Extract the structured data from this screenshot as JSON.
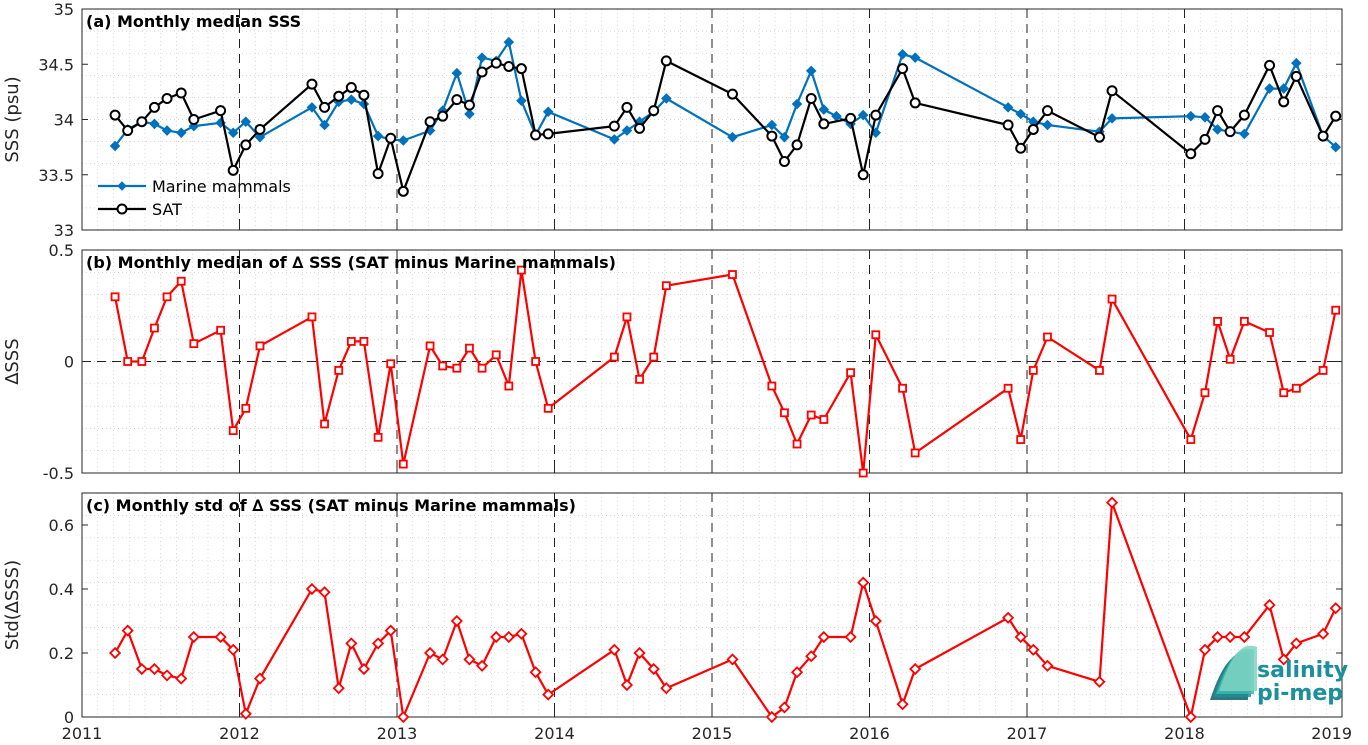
{
  "chart_data": [
    {
      "type": "line",
      "title": "(a) Monthly median SSS",
      "ylabel": "SSS (psu)",
      "xlim": [
        2011,
        2019
      ],
      "ylim": [
        33,
        35
      ],
      "yticks": [
        "33",
        "33.5",
        "34",
        "34.5",
        "35"
      ],
      "xticks": [
        "2011",
        "2012",
        "2013",
        "2014",
        "2015",
        "2016",
        "2017",
        "2018",
        "2019"
      ],
      "grid": true,
      "legend_position": "bottom-left",
      "series": [
        {
          "name": "Marine mammals",
          "color": "#0072bd",
          "marker": "diamond",
          "x": [
            2011.21,
            2011.29,
            2011.38,
            2011.46,
            2011.54,
            2011.63,
            2011.71,
            2011.88,
            2011.96,
            2012.04,
            2012.13,
            2012.46,
            2012.54,
            2012.63,
            2012.71,
            2012.79,
            2012.88,
            2012.96,
            2013.04,
            2013.21,
            2013.29,
            2013.38,
            2013.46,
            2013.54,
            2013.63,
            2013.71,
            2013.79,
            2013.88,
            2013.96,
            2014.38,
            2014.46,
            2014.54,
            2014.63,
            2014.71,
            2015.13,
            2015.38,
            2015.46,
            2015.54,
            2015.63,
            2015.71,
            2015.79,
            2015.88,
            2015.96,
            2016.04,
            2016.21,
            2016.29,
            2016.88,
            2016.96,
            2017.04,
            2017.13,
            2017.46,
            2017.54,
            2018.04,
            2018.13,
            2018.21,
            2018.29,
            2018.38,
            2018.54,
            2018.63,
            2018.71,
            2018.88,
            2018.96
          ],
          "y": [
            33.76,
            33.91,
            33.98,
            33.96,
            33.9,
            33.88,
            33.94,
            33.97,
            33.88,
            33.98,
            33.84,
            34.11,
            33.95,
            34.16,
            34.18,
            34.14,
            33.85,
            33.82,
            33.81,
            33.9,
            34.08,
            34.42,
            34.05,
            34.56,
            34.53,
            34.7,
            34.17,
            33.86,
            34.07,
            33.82,
            33.9,
            33.98,
            34.07,
            34.19,
            33.84,
            33.95,
            33.84,
            34.14,
            34.44,
            34.09,
            34.03,
            33.96,
            34.04,
            33.88,
            34.59,
            34.56,
            34.11,
            34.05,
            33.98,
            33.95,
            33.89,
            34.01,
            34.03,
            34.02,
            33.91,
            33.89,
            33.87,
            34.28,
            34.28,
            34.51,
            33.85,
            33.75
          ]
        },
        {
          "name": "SAT",
          "color": "#000000",
          "marker": "circle",
          "x": [
            2011.21,
            2011.29,
            2011.38,
            2011.46,
            2011.54,
            2011.63,
            2011.71,
            2011.88,
            2011.96,
            2012.04,
            2012.13,
            2012.46,
            2012.54,
            2012.63,
            2012.71,
            2012.79,
            2012.88,
            2012.96,
            2013.04,
            2013.21,
            2013.29,
            2013.38,
            2013.46,
            2013.54,
            2013.63,
            2013.71,
            2013.79,
            2013.88,
            2013.96,
            2014.38,
            2014.46,
            2014.54,
            2014.63,
            2014.71,
            2015.13,
            2015.38,
            2015.46,
            2015.54,
            2015.63,
            2015.71,
            2015.88,
            2015.96,
            2016.04,
            2016.21,
            2016.29,
            2016.88,
            2016.96,
            2017.04,
            2017.13,
            2017.46,
            2017.54,
            2018.04,
            2018.13,
            2018.21,
            2018.29,
            2018.38,
            2018.54,
            2018.63,
            2018.71,
            2018.88,
            2018.96
          ],
          "y": [
            34.04,
            33.9,
            33.98,
            34.11,
            34.19,
            34.24,
            34.0,
            34.08,
            33.54,
            33.77,
            33.91,
            34.32,
            34.11,
            34.21,
            34.29,
            34.22,
            33.51,
            33.83,
            33.35,
            33.98,
            34.03,
            34.18,
            34.13,
            34.43,
            34.51,
            34.48,
            34.46,
            33.86,
            33.87,
            33.94,
            34.11,
            33.92,
            34.08,
            34.53,
            34.23,
            33.85,
            33.62,
            33.77,
            34.19,
            33.96,
            34.01,
            33.5,
            34.04,
            34.46,
            34.15,
            33.95,
            33.74,
            33.91,
            34.08,
            33.84,
            34.26,
            33.69,
            33.82,
            34.08,
            33.89,
            34.04,
            34.49,
            34.16,
            34.39,
            33.85,
            34.03
          ]
        }
      ]
    },
    {
      "type": "line",
      "title": "(b) Monthly median of ∆ SSS (SAT minus Marine mammals)",
      "ylabel": "∆SSS",
      "xlim": [
        2011,
        2019
      ],
      "ylim": [
        -0.5,
        0.5
      ],
      "yticks": [
        "-0.5",
        "0",
        "0.5"
      ],
      "xticks": [
        "2011",
        "2012",
        "2013",
        "2014",
        "2015",
        "2016",
        "2017",
        "2018",
        "2019"
      ],
      "grid": true,
      "series": [
        {
          "color": "#ff0000",
          "marker": "square",
          "x": [
            2011.21,
            2011.29,
            2011.38,
            2011.46,
            2011.54,
            2011.63,
            2011.71,
            2011.88,
            2011.96,
            2012.04,
            2012.13,
            2012.46,
            2012.54,
            2012.63,
            2012.71,
            2012.79,
            2012.88,
            2012.96,
            2013.04,
            2013.21,
            2013.29,
            2013.38,
            2013.46,
            2013.54,
            2013.63,
            2013.71,
            2013.79,
            2013.88,
            2013.96,
            2014.38,
            2014.46,
            2014.54,
            2014.63,
            2014.71,
            2015.13,
            2015.38,
            2015.46,
            2015.54,
            2015.63,
            2015.71,
            2015.88,
            2015.96,
            2016.04,
            2016.21,
            2016.29,
            2016.88,
            2016.96,
            2017.04,
            2017.13,
            2017.46,
            2017.54,
            2018.04,
            2018.13,
            2018.21,
            2018.29,
            2018.38,
            2018.54,
            2018.63,
            2018.71,
            2018.88,
            2018.96
          ],
          "y": [
            0.29,
            0.0,
            0.0,
            0.15,
            0.29,
            0.36,
            0.08,
            0.14,
            -0.31,
            -0.21,
            0.07,
            0.2,
            -0.28,
            -0.04,
            0.09,
            0.09,
            -0.34,
            -0.01,
            -0.46,
            0.07,
            -0.02,
            -0.03,
            0.06,
            -0.03,
            0.03,
            -0.11,
            0.41,
            0.0,
            -0.21,
            0.02,
            0.2,
            -0.08,
            0.02,
            0.34,
            0.39,
            -0.11,
            -0.23,
            -0.37,
            -0.24,
            -0.26,
            -0.05,
            -0.5,
            0.12,
            -0.12,
            -0.41,
            -0.12,
            -0.35,
            -0.04,
            0.11,
            -0.04,
            0.28,
            -0.35,
            -0.14,
            0.18,
            0.01,
            0.18,
            0.13,
            -0.14,
            -0.12,
            -0.04,
            0.23
          ]
        }
      ]
    },
    {
      "type": "line",
      "title": "(c) Monthly std of ∆ SSS (SAT minus Marine mammals)",
      "ylabel": "Std(∆SSS)",
      "xlim": [
        2011,
        2019
      ],
      "ylim": [
        0,
        0.7
      ],
      "yticks": [
        "0",
        "0.2",
        "0.4",
        "0.6"
      ],
      "xticks": [
        "2011",
        "2012",
        "2013",
        "2014",
        "2015",
        "2016",
        "2017",
        "2018",
        "2019"
      ],
      "grid": true,
      "series": [
        {
          "color": "#ff0000",
          "marker": "diamond",
          "x": [
            2011.21,
            2011.29,
            2011.38,
            2011.46,
            2011.54,
            2011.63,
            2011.71,
            2011.88,
            2011.96,
            2012.04,
            2012.13,
            2012.46,
            2012.54,
            2012.63,
            2012.71,
            2012.79,
            2012.88,
            2012.96,
            2013.04,
            2013.21,
            2013.29,
            2013.38,
            2013.46,
            2013.54,
            2013.63,
            2013.71,
            2013.79,
            2013.88,
            2013.96,
            2014.38,
            2014.46,
            2014.54,
            2014.63,
            2014.71,
            2015.13,
            2015.38,
            2015.46,
            2015.54,
            2015.63,
            2015.71,
            2015.88,
            2015.96,
            2016.04,
            2016.21,
            2016.29,
            2016.88,
            2016.96,
            2017.04,
            2017.13,
            2017.46,
            2017.54,
            2018.04,
            2018.13,
            2018.21,
            2018.29,
            2018.38,
            2018.54,
            2018.63,
            2018.71,
            2018.88,
            2018.96
          ],
          "y": [
            0.2,
            0.27,
            0.15,
            0.15,
            0.13,
            0.12,
            0.25,
            0.25,
            0.21,
            0.01,
            0.12,
            0.4,
            0.39,
            0.09,
            0.23,
            0.15,
            0.23,
            0.27,
            0.0,
            0.2,
            0.18,
            0.3,
            0.18,
            0.16,
            0.25,
            0.25,
            0.26,
            0.14,
            0.07,
            0.21,
            0.1,
            0.2,
            0.15,
            0.09,
            0.18,
            0.0,
            0.03,
            0.14,
            0.19,
            0.25,
            0.25,
            0.42,
            0.3,
            0.04,
            0.15,
            0.31,
            0.25,
            0.21,
            0.16,
            0.11,
            0.67,
            0.0,
            0.21,
            0.25,
            0.25,
            0.25,
            0.35,
            0.18,
            0.23,
            0.26,
            0.34
          ]
        }
      ]
    }
  ],
  "logo": {
    "line1": "salinity",
    "line2": "pi-mep"
  }
}
